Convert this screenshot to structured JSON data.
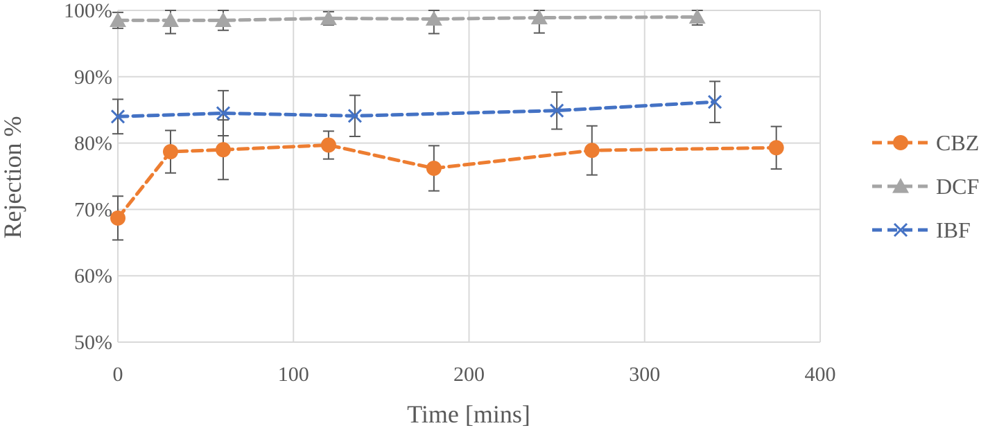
{
  "chart_data": {
    "type": "line",
    "xlabel": "Time [mins]",
    "ylabel": "Rejection %",
    "xlim": [
      0,
      400
    ],
    "ylim": [
      50,
      100
    ],
    "x_ticks": [
      "0",
      "100",
      "200",
      "300",
      "400"
    ],
    "y_ticks": [
      "50%",
      "60%",
      "70%",
      "80%",
      "90%",
      "100%"
    ],
    "grid": true,
    "legend_position": "right",
    "series": [
      {
        "name": "CBZ",
        "color": "#ED7D31",
        "marker": "circle",
        "points": [
          {
            "x": 0,
            "y": 68.7,
            "err": 3.3
          },
          {
            "x": 30,
            "y": 78.7,
            "err": 3.2
          },
          {
            "x": 60,
            "y": 79.0,
            "err": 4.5
          },
          {
            "x": 120,
            "y": 79.7,
            "err": 2.1
          },
          {
            "x": 180,
            "y": 76.2,
            "err": 3.4
          },
          {
            "x": 270,
            "y": 78.9,
            "err": 3.7
          },
          {
            "x": 375,
            "y": 79.3,
            "err": 3.2
          }
        ]
      },
      {
        "name": "DCF",
        "color": "#A5A5A5",
        "marker": "triangle",
        "points": [
          {
            "x": 0,
            "y": 98.5,
            "err": 1.2
          },
          {
            "x": 30,
            "y": 98.5,
            "err": 2.0
          },
          {
            "x": 60,
            "y": 98.5,
            "err": 1.5
          },
          {
            "x": 120,
            "y": 98.8,
            "err": 1.0
          },
          {
            "x": 180,
            "y": 98.7,
            "err": 2.2
          },
          {
            "x": 240,
            "y": 98.9,
            "err": 2.3
          },
          {
            "x": 330,
            "y": 99.0,
            "err": 1.2
          }
        ]
      },
      {
        "name": "IBF",
        "color": "#4472C4",
        "marker": "x",
        "points": [
          {
            "x": 0,
            "y": 84.0,
            "err": 2.6
          },
          {
            "x": 60,
            "y": 84.5,
            "err": 3.4
          },
          {
            "x": 135,
            "y": 84.1,
            "err": 3.1
          },
          {
            "x": 250,
            "y": 84.9,
            "err": 2.8
          },
          {
            "x": 340,
            "y": 86.2,
            "err": 3.1
          }
        ]
      }
    ]
  }
}
